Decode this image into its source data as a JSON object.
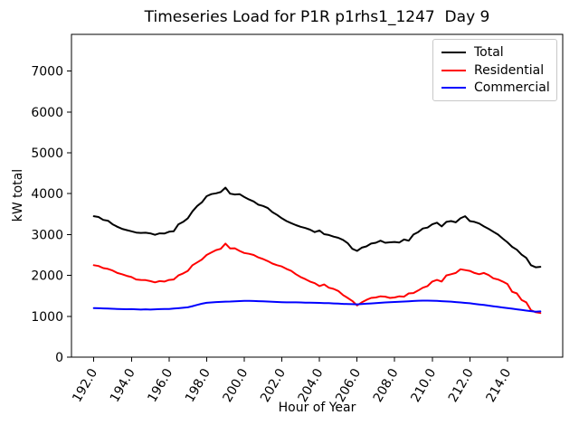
{
  "title": "Timeseries Load for P1R p1rhs1_1247  Day 9",
  "chart_data": {
    "type": "line",
    "title": "Timeseries Load for P1R p1rhs1_1247  Day 9",
    "xlabel": "Hour of Year",
    "ylabel": "kW total",
    "xlim": [
      190.81,
      216.94
    ],
    "ylim": [
      0,
      7900
    ],
    "grid": false,
    "legend_position": "upper right",
    "x_ticks": {
      "values": [
        192,
        194,
        196,
        198,
        200,
        202,
        204,
        206,
        208,
        210,
        212,
        214
      ],
      "labels": [
        "192.0",
        "194.0",
        "196.0",
        "198.0",
        "200.0",
        "202.0",
        "204.0",
        "206.0",
        "208.0",
        "210.0",
        "212.0",
        "214.0"
      ],
      "rotation_deg": 60
    },
    "y_ticks": {
      "values": [
        0,
        1000,
        2000,
        3000,
        4000,
        5000,
        6000,
        7000
      ],
      "labels": [
        "0",
        "1000",
        "2000",
        "3000",
        "4000",
        "5000",
        "6000",
        "7000"
      ]
    },
    "x": [
      192.0,
      192.25,
      192.5,
      192.75,
      193.0,
      193.25,
      193.5,
      193.75,
      194.0,
      194.25,
      194.5,
      194.75,
      195.0,
      195.25,
      195.5,
      195.75,
      196.0,
      196.25,
      196.5,
      196.75,
      197.0,
      197.25,
      197.5,
      197.75,
      198.0,
      198.25,
      198.5,
      198.75,
      199.0,
      199.25,
      199.5,
      199.75,
      200.0,
      200.25,
      200.5,
      200.75,
      201.0,
      201.25,
      201.5,
      201.75,
      202.0,
      202.25,
      202.5,
      202.75,
      203.0,
      203.25,
      203.5,
      203.75,
      204.0,
      204.25,
      204.5,
      204.75,
      205.0,
      205.25,
      205.5,
      205.75,
      206.0,
      206.25,
      206.5,
      206.75,
      207.0,
      207.25,
      207.5,
      207.75,
      208.0,
      208.25,
      208.5,
      208.75,
      209.0,
      209.25,
      209.5,
      209.75,
      210.0,
      210.25,
      210.5,
      210.75,
      211.0,
      211.25,
      211.5,
      211.75,
      212.0,
      212.25,
      212.5,
      212.75,
      213.0,
      213.25,
      213.5,
      213.75,
      214.0,
      214.25,
      214.5,
      214.75,
      215.0,
      215.25,
      215.5,
      215.75
    ],
    "series": [
      {
        "name": "Total",
        "color": "#000000",
        "values": [
          3450,
          3430,
          3360,
          3340,
          3250,
          3190,
          3140,
          3110,
          3080,
          3050,
          3040,
          3045,
          3030,
          2995,
          3030,
          3025,
          3070,
          3080,
          3250,
          3310,
          3400,
          3570,
          3700,
          3790,
          3940,
          3990,
          4010,
          4040,
          4150,
          4000,
          3980,
          3990,
          3920,
          3860,
          3810,
          3730,
          3700,
          3650,
          3550,
          3480,
          3400,
          3330,
          3280,
          3230,
          3190,
          3160,
          3120,
          3060,
          3100,
          3010,
          2990,
          2950,
          2920,
          2870,
          2790,
          2650,
          2600,
          2680,
          2710,
          2780,
          2800,
          2850,
          2800,
          2810,
          2820,
          2805,
          2880,
          2850,
          3000,
          3060,
          3150,
          3170,
          3250,
          3290,
          3200,
          3310,
          3330,
          3300,
          3400,
          3450,
          3330,
          3310,
          3270,
          3200,
          3140,
          3070,
          3000,
          2900,
          2810,
          2700,
          2630,
          2510,
          2430,
          2250,
          2200,
          2210
        ]
      },
      {
        "name": "Residential",
        "color": "#ff0000",
        "values": [
          2250,
          2230,
          2180,
          2160,
          2120,
          2060,
          2030,
          1990,
          1960,
          1900,
          1890,
          1885,
          1860,
          1830,
          1860,
          1850,
          1890,
          1900,
          2000,
          2050,
          2110,
          2250,
          2320,
          2390,
          2500,
          2560,
          2620,
          2650,
          2780,
          2660,
          2665,
          2600,
          2550,
          2530,
          2500,
          2440,
          2400,
          2350,
          2290,
          2250,
          2220,
          2160,
          2110,
          2030,
          1960,
          1910,
          1850,
          1810,
          1740,
          1780,
          1700,
          1670,
          1620,
          1520,
          1450,
          1375,
          1265,
          1340,
          1400,
          1450,
          1460,
          1490,
          1480,
          1450,
          1460,
          1490,
          1480,
          1560,
          1570,
          1630,
          1700,
          1740,
          1850,
          1890,
          1850,
          2000,
          2030,
          2060,
          2150,
          2130,
          2110,
          2060,
          2030,
          2060,
          2010,
          1930,
          1900,
          1850,
          1790,
          1600,
          1560,
          1400,
          1340,
          1150,
          1100,
          1080
        ]
      },
      {
        "name": "Commercial",
        "color": "#0000ff",
        "values": [
          1200,
          1198,
          1192,
          1190,
          1183,
          1180,
          1176,
          1172,
          1175,
          1170,
          1165,
          1170,
          1165,
          1170,
          1174,
          1178,
          1180,
          1188,
          1198,
          1208,
          1220,
          1248,
          1278,
          1308,
          1330,
          1338,
          1348,
          1353,
          1358,
          1362,
          1368,
          1372,
          1378,
          1378,
          1374,
          1370,
          1365,
          1360,
          1355,
          1350,
          1346,
          1342,
          1340,
          1340,
          1338,
          1335,
          1332,
          1330,
          1328,
          1324,
          1320,
          1315,
          1310,
          1304,
          1298,
          1296,
          1292,
          1298,
          1308,
          1314,
          1320,
          1330,
          1338,
          1344,
          1350,
          1356,
          1360,
          1368,
          1374,
          1380,
          1384,
          1384,
          1380,
          1376,
          1370,
          1364,
          1358,
          1348,
          1338,
          1328,
          1318,
          1304,
          1290,
          1276,
          1262,
          1246,
          1230,
          1215,
          1200,
          1185,
          1170,
          1155,
          1140,
          1126,
          1112,
          1120
        ]
      }
    ]
  }
}
